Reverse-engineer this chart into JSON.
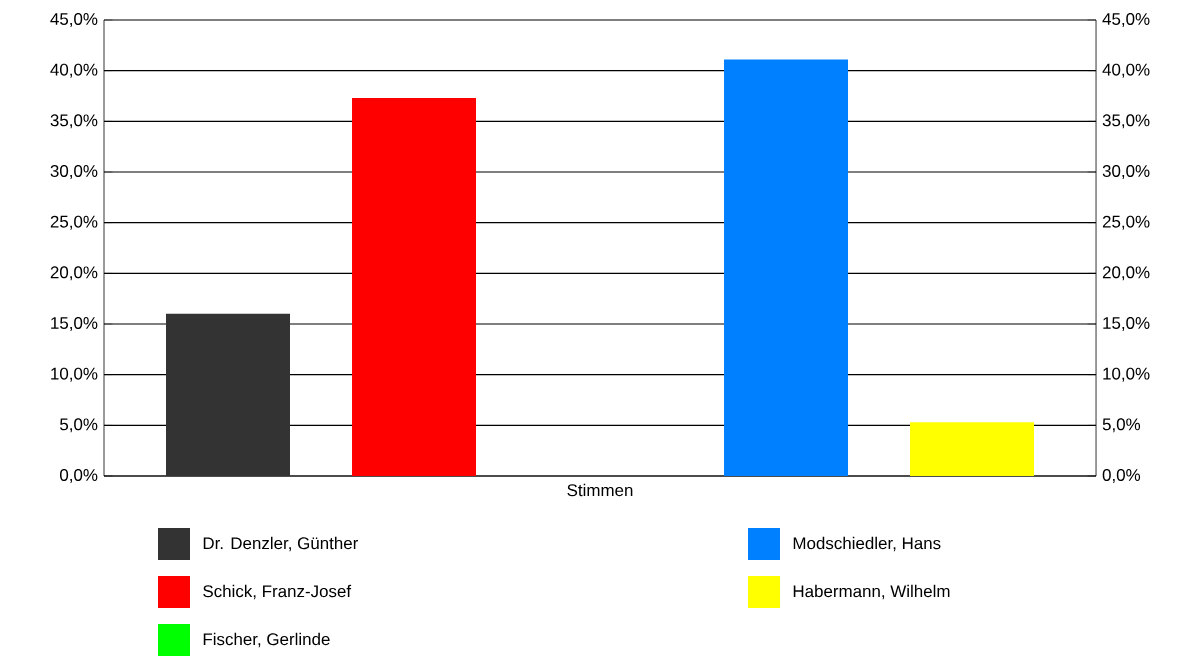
{
  "chart_data": {
    "type": "bar",
    "xlabel": "Stimmen",
    "categories": [
      null
    ],
    "series": [
      {
        "name": "Dr. Denzler, Günther",
        "color": "#333333",
        "values": [
          16.0
        ]
      },
      {
        "name": "Schick, Franz-Josef",
        "color": "#ff0000",
        "values": [
          37.3
        ]
      },
      {
        "name": "Fischer, Gerlinde",
        "color": "#00ff00",
        "values": [
          0
        ]
      },
      {
        "name": "Modschiedler, Hans",
        "color": "#0080ff",
        "values": [
          41.1
        ]
      },
      {
        "name": "Habermann, Wilhelm",
        "color": "#ffff00",
        "values": [
          5.3
        ]
      }
    ],
    "ylim": [
      0,
      45
    ],
    "yticks": [
      {
        "value": 0,
        "label": "0,0%"
      },
      {
        "value": 5,
        "label": "5,0%"
      },
      {
        "value": 10,
        "label": "10,0%"
      },
      {
        "value": 15,
        "label": "15,0%"
      },
      {
        "value": 20,
        "label": "20,0%"
      },
      {
        "value": 25,
        "label": "25,0%"
      },
      {
        "value": 30,
        "label": "30,0%"
      },
      {
        "value": 35,
        "label": "35,0%"
      },
      {
        "value": 40,
        "label": "40,0%"
      },
      {
        "value": 45,
        "label": "45,0%"
      }
    ],
    "y2lim": [
      0,
      45
    ],
    "y2ticks": [
      {
        "value": 0,
        "label": "0,0%"
      },
      {
        "value": 5,
        "label": "5,0%"
      },
      {
        "value": 10,
        "label": "10,0%"
      },
      {
        "value": 15,
        "label": "15,0%"
      },
      {
        "value": 20,
        "label": "20,0%"
      },
      {
        "value": 25,
        "label": "25,0%"
      },
      {
        "value": 30,
        "label": "30,0%"
      },
      {
        "value": 35,
        "label": "35,0%"
      },
      {
        "value": 40,
        "label": "40,0%"
      },
      {
        "value": 45,
        "label": "45,0%"
      }
    ],
    "grid": "y",
    "legend": "bottom"
  }
}
